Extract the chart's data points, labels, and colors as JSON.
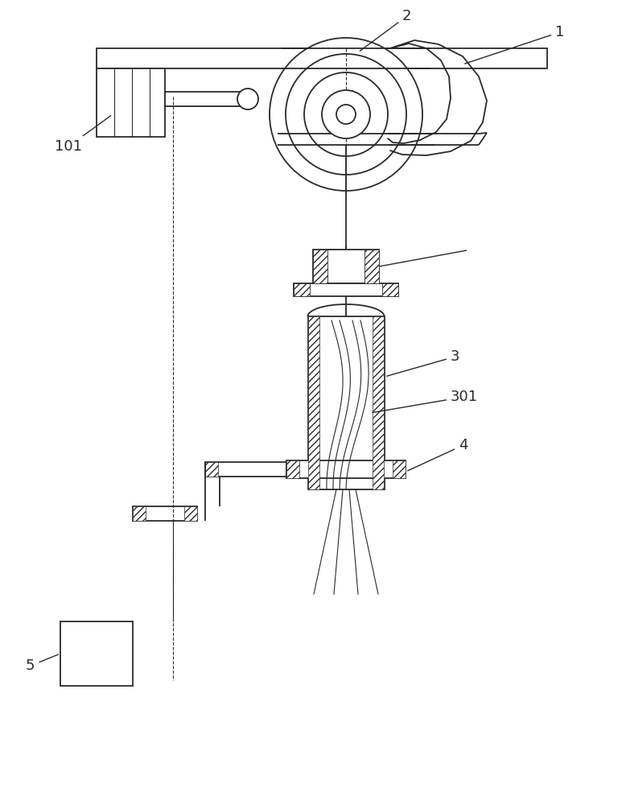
{
  "bg_color": "#ffffff",
  "line_color": "#2a2a2a",
  "lw_main": 1.3,
  "lw_thin": 0.8,
  "label_fs": 13,
  "fig_width": 7.78,
  "fig_height": 10.0,
  "dpi": 100
}
